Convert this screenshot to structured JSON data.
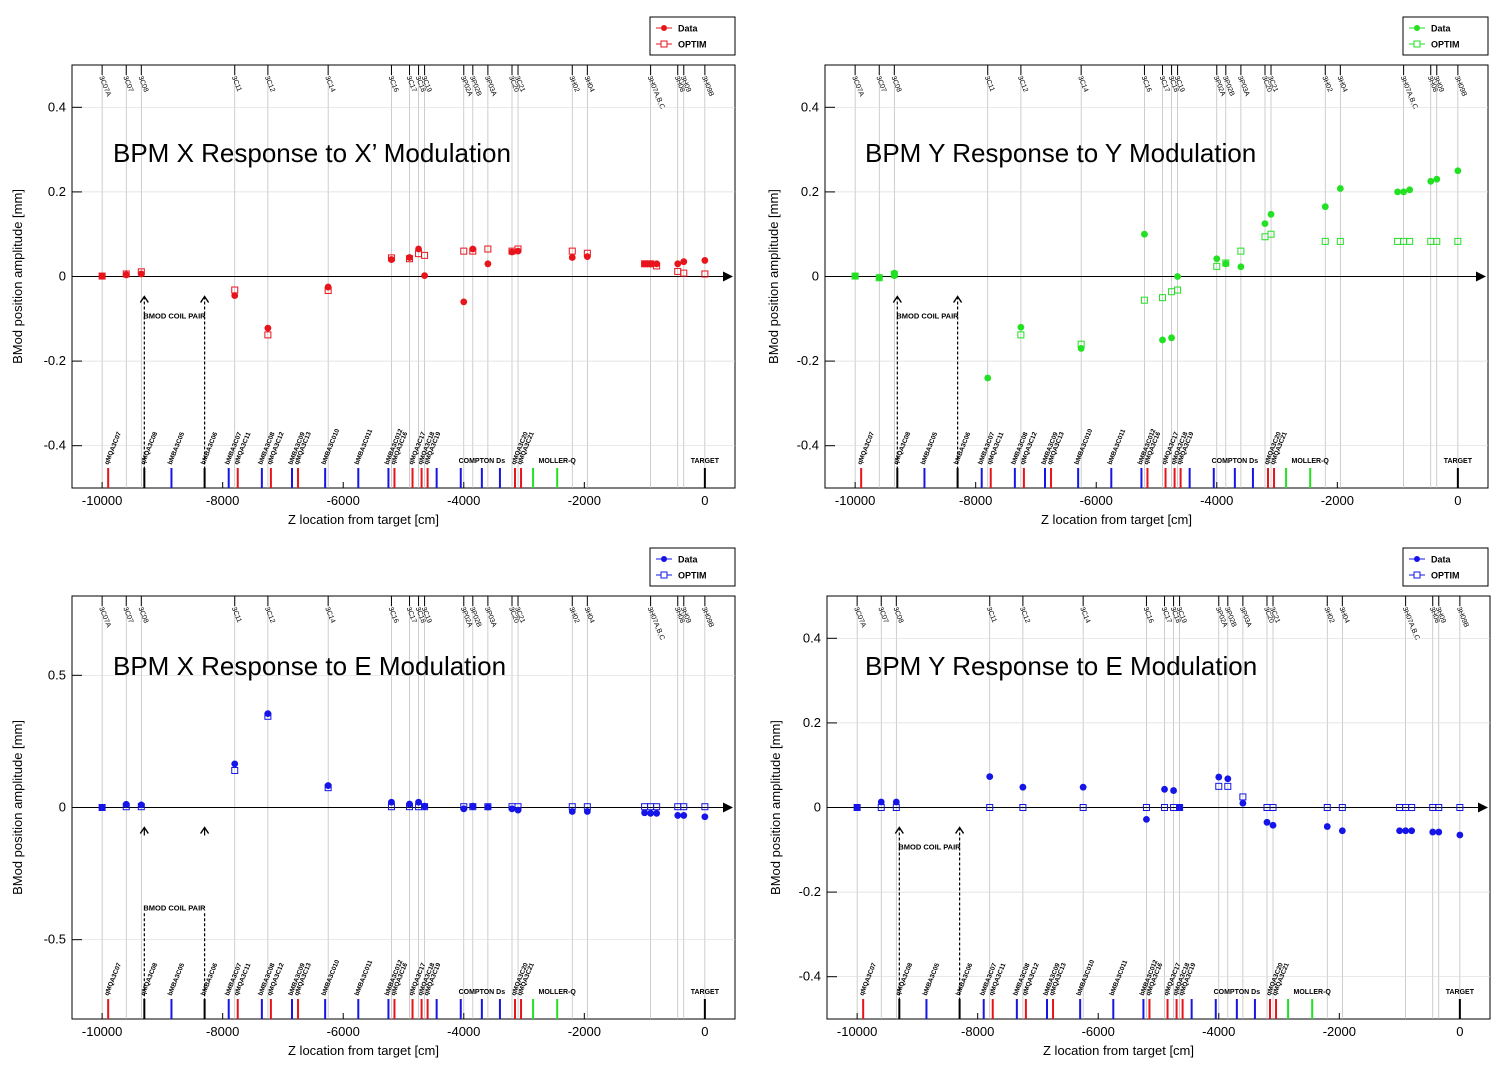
{
  "chart_data": [
    {
      "type": "scatter",
      "title": "BPM X Response to X’ Modulation",
      "xlabel": "Z location from target [cm]",
      "ylabel": "BMod position amplitude [mm]",
      "xlim": [
        -10500,
        500
      ],
      "ylim": [
        -0.5,
        0.5
      ],
      "xticks": [
        -10000,
        -8000,
        -6000,
        -4000,
        -2000,
        0
      ],
      "xtick_labels": [
        "-10000",
        "-8000",
        "-6000",
        "-4000",
        "-2000",
        "0"
      ],
      "yticks": [
        -0.4,
        -0.2,
        0,
        0.2,
        0.4
      ],
      "ytick_labels": [
        "-0.4",
        "-0.2",
        "0",
        "0.2",
        "0.4"
      ],
      "grid": true,
      "legend_position": "top-right",
      "color": "#e8141c",
      "series": [
        {
          "name": "Data",
          "marker": "filled-circle",
          "x": [
            -10000,
            -9600,
            -9350,
            -7800,
            -7250,
            -6250,
            -5200,
            -4900,
            -4750,
            -4650,
            -4000,
            -3850,
            -3600,
            -3200,
            -3100,
            -2200,
            -1950,
            -1000,
            -900,
            -800,
            -450,
            -350,
            0
          ],
          "y": [
            0.001,
            0.004,
            0.006,
            -0.045,
            -0.122,
            -0.025,
            0.04,
            0.045,
            0.065,
            0.002,
            -0.06,
            0.065,
            0.03,
            0.058,
            0.06,
            0.045,
            0.047,
            0.03,
            0.03,
            0.03,
            0.03,
            0.035,
            0.038
          ]
        },
        {
          "name": "OPTIM",
          "marker": "open-square",
          "x": [
            -10000,
            -9600,
            -9350,
            -7800,
            -7250,
            -6250,
            -5200,
            -4900,
            -4750,
            -4650,
            -4000,
            -3850,
            -3600,
            -3200,
            -3100,
            -2200,
            -1950,
            -1000,
            -900,
            -800,
            -450,
            -350,
            0
          ],
          "y": [
            0.001,
            0.006,
            0.011,
            -0.032,
            -0.138,
            -0.033,
            0.044,
            0.042,
            0.054,
            0.05,
            0.06,
            0.06,
            0.065,
            0.06,
            0.065,
            0.06,
            0.055,
            0.03,
            0.03,
            0.025,
            0.012,
            0.008,
            0.006
          ]
        }
      ],
      "coil_label": "BMOD COIL PAIR"
    },
    {
      "type": "scatter",
      "title": "BPM Y Response to Y Modulation",
      "xlabel": "Z location from target [cm]",
      "ylabel": "BMod position amplitude [mm]",
      "xlim": [
        -10500,
        500
      ],
      "ylim": [
        -0.5,
        0.5
      ],
      "xticks": [
        -10000,
        -8000,
        -6000,
        -4000,
        -2000,
        0
      ],
      "xtick_labels": [
        "-10000",
        "-8000",
        "-6000",
        "-4000",
        "-2000",
        "0"
      ],
      "yticks": [
        -0.4,
        -0.2,
        0,
        0.2,
        0.4
      ],
      "ytick_labels": [
        "-0.4",
        "-0.2",
        "0",
        "0.2",
        "0.4"
      ],
      "grid": true,
      "legend_position": "top-right",
      "color": "#22e022",
      "series": [
        {
          "name": "Data",
          "marker": "filled-circle",
          "x": [
            -10000,
            -9600,
            -9350,
            -9350,
            -7800,
            -7250,
            -6250,
            -5200,
            -4900,
            -4750,
            -4650,
            -4000,
            -3850,
            -3600,
            -3200,
            -3100,
            -2200,
            -1950,
            -1000,
            -900,
            -800,
            -450,
            -350,
            0
          ],
          "y": [
            0.001,
            -0.002,
            0.002,
            0.008,
            -0.24,
            -0.12,
            -0.17,
            0.1,
            -0.15,
            -0.145,
            0.0,
            0.042,
            0.03,
            0.023,
            0.125,
            0.147,
            0.165,
            0.208,
            0.2,
            0.2,
            0.205,
            0.225,
            0.23,
            0.25
          ]
        },
        {
          "name": "OPTIM",
          "marker": "open-square",
          "x": [
            -10000,
            -9600,
            -9350,
            -7250,
            -6250,
            -5200,
            -4900,
            -4750,
            -4650,
            -4000,
            -3850,
            -3600,
            -3200,
            -3100,
            -2200,
            -1950,
            -1000,
            -900,
            -800,
            -450,
            -350,
            0
          ],
          "y": [
            0.001,
            -0.003,
            0.005,
            -0.138,
            -0.16,
            -0.056,
            -0.05,
            -0.036,
            -0.032,
            0.024,
            0.032,
            0.06,
            0.094,
            0.1,
            0.083,
            0.083,
            0.083,
            0.083,
            0.083,
            0.083,
            0.083,
            0.083
          ]
        }
      ],
      "coil_label": "BMOD COIL PAIR"
    },
    {
      "type": "scatter",
      "title": "BPM X Response to E Modulation",
      "xlabel": "Z location from target [cm]",
      "ylabel": "BMod position amplitude [mm]",
      "xlim": [
        -10500,
        500
      ],
      "ylim": [
        -0.8,
        0.8
      ],
      "xticks": [
        -10000,
        -8000,
        -6000,
        -4000,
        -2000,
        0
      ],
      "xtick_labels": [
        "-10000",
        "-8000",
        "-6000",
        "-4000",
        "-2000",
        "0"
      ],
      "yticks": [
        -0.5,
        0,
        0.5
      ],
      "ytick_labels": [
        "-0.5",
        "0",
        "0.5"
      ],
      "grid": true,
      "legend_position": "top-right",
      "color": "#1515e8",
      "series": [
        {
          "name": "Data",
          "marker": "filled-circle",
          "x": [
            -10000,
            -9600,
            -9350,
            -7800,
            -7250,
            -6250,
            -5200,
            -4900,
            -4750,
            -4650,
            -4000,
            -3850,
            -3600,
            -3200,
            -3100,
            -2200,
            -1950,
            -1000,
            -900,
            -800,
            -450,
            -350,
            0
          ],
          "y": [
            0.0,
            0.012,
            0.01,
            0.165,
            0.355,
            0.083,
            0.02,
            0.013,
            0.02,
            0.005,
            -0.005,
            0.005,
            0.002,
            -0.005,
            -0.01,
            -0.015,
            -0.015,
            -0.02,
            -0.022,
            -0.022,
            -0.03,
            -0.03,
            -0.035
          ]
        },
        {
          "name": "OPTIM",
          "marker": "open-square",
          "x": [
            -10000,
            -9600,
            -9350,
            -7800,
            -7250,
            -6250,
            -5200,
            -4900,
            -4750,
            -4650,
            -4000,
            -3850,
            -3600,
            -3200,
            -3100,
            -2200,
            -1950,
            -1000,
            -900,
            -800,
            -450,
            -350,
            0
          ],
          "y": [
            0.0,
            0.003,
            0.003,
            0.14,
            0.345,
            0.075,
            0.003,
            0.003,
            0.003,
            0.003,
            0.003,
            0.003,
            0.003,
            0.003,
            0.003,
            0.003,
            0.003,
            0.003,
            0.003,
            0.003,
            0.003,
            0.003,
            0.003
          ]
        }
      ],
      "coil_label": "BMOD COIL PAIR"
    },
    {
      "type": "scatter",
      "title": "BPM Y Response to E Modulation",
      "xlabel": "Z location from target [cm]",
      "ylabel": "BMod position amplitude [mm]",
      "xlim": [
        -10500,
        500
      ],
      "ylim": [
        -0.5,
        0.5
      ],
      "xticks": [
        -10000,
        -8000,
        -6000,
        -4000,
        -2000,
        0
      ],
      "xtick_labels": [
        "-10000",
        "-8000",
        "-6000",
        "-4000",
        "-2000",
        "0"
      ],
      "yticks": [
        -0.4,
        -0.2,
        0,
        0.2,
        0.4
      ],
      "ytick_labels": [
        "-0.4",
        "-0.2",
        "0",
        "0.2",
        "0.4"
      ],
      "grid": true,
      "legend_position": "top-right",
      "color": "#1515e8",
      "series": [
        {
          "name": "Data",
          "marker": "filled-circle",
          "x": [
            -10000,
            -9600,
            -9350,
            -7800,
            -7250,
            -6250,
            -5200,
            -4900,
            -4750,
            -4650,
            -4000,
            -3850,
            -3600,
            -3200,
            -3100,
            -2200,
            -1950,
            -1000,
            -900,
            -800,
            -450,
            -350,
            0
          ],
          "y": [
            0.0,
            0.013,
            0.013,
            0.073,
            0.048,
            0.048,
            -0.028,
            0.043,
            0.04,
            0.0,
            0.072,
            0.068,
            0.01,
            -0.035,
            -0.042,
            -0.045,
            -0.055,
            -0.055,
            -0.055,
            -0.055,
            -0.058,
            -0.058,
            -0.065
          ]
        },
        {
          "name": "OPTIM",
          "marker": "open-square",
          "x": [
            -10000,
            -9600,
            -9350,
            -7800,
            -7250,
            -6250,
            -5200,
            -4900,
            -4750,
            -4650,
            -4000,
            -3850,
            -3600,
            -3200,
            -3100,
            -2200,
            -1950,
            -1000,
            -900,
            -800,
            -450,
            -350,
            0
          ],
          "y": [
            0.0,
            0.0,
            0.0,
            0.0,
            0.0,
            0.0,
            0.0,
            0.0,
            0.0,
            0.0,
            0.05,
            0.05,
            0.025,
            0.0,
            0.0,
            0.0,
            0.0,
            0.0,
            0.0,
            0.0,
            0.0,
            0.0,
            0.0
          ]
        }
      ],
      "coil_label": "BMOD COIL PAIR"
    }
  ],
  "bpm_markers": [
    {
      "label": "3C07A",
      "z": -10000
    },
    {
      "label": "3C07",
      "z": -9600
    },
    {
      "label": "3C08",
      "z": -9350
    },
    {
      "label": "3C11",
      "z": -7800
    },
    {
      "label": "3C12",
      "z": -7250
    },
    {
      "label": "3C14",
      "z": -6250
    },
    {
      "label": "3C16",
      "z": -5200
    },
    {
      "label": "3C17",
      "z": -4900
    },
    {
      "label": "3C18",
      "z": -4750
    },
    {
      "label": "3C19",
      "z": -4650
    },
    {
      "label": "3P02A",
      "z": -4000
    },
    {
      "label": "3P02B",
      "z": -3850
    },
    {
      "label": "3P03A",
      "z": -3600
    },
    {
      "label": "3C20",
      "z": -3200
    },
    {
      "label": "3C21",
      "z": -3100
    },
    {
      "label": "3H02",
      "z": -2200
    },
    {
      "label": "3H04",
      "z": -1950
    },
    {
      "label": "3H07A,B,C",
      "z": -900
    },
    {
      "label": "3H08",
      "z": -450
    },
    {
      "label": "3H09",
      "z": -350
    },
    {
      "label": "3H09B",
      "z": 0
    }
  ],
  "magnet_markers": [
    {
      "label": "qMQA3C07",
      "z": -9900,
      "color": "#e8141c"
    },
    {
      "label": "qMQA3C08",
      "z": -9300,
      "color": "#000000"
    },
    {
      "label": "bMBA3C05",
      "z": -8850,
      "color": "#1515e8"
    },
    {
      "label": "bMBA3C06",
      "z": -8300,
      "color": "#000000"
    },
    {
      "label": "bMBA3C07",
      "z": -7900,
      "color": "#1515e8"
    },
    {
      "label": "qMQA3C11",
      "z": -7750,
      "color": "#e8141c"
    },
    {
      "label": "bMBA3C08",
      "z": -7350,
      "color": "#1515e8"
    },
    {
      "label": "qMQA3C12",
      "z": -7200,
      "color": "#e8141c"
    },
    {
      "label": "bMBA3C09",
      "z": -6850,
      "color": "#1515e8"
    },
    {
      "label": "qMQA3C13",
      "z": -6750,
      "color": "#e8141c"
    },
    {
      "label": "bMBA3C010",
      "z": -6300,
      "color": "#1515e8"
    },
    {
      "label": "bMBA3C011",
      "z": -5750,
      "color": "#1515e8"
    },
    {
      "label": "bMBA3C012",
      "z": -5250,
      "color": "#1515e8"
    },
    {
      "label": "qMQA3C16",
      "z": -5150,
      "color": "#e8141c"
    },
    {
      "label": "qMQA3C17",
      "z": -4850,
      "color": "#e8141c"
    },
    {
      "label": "qMQA3C18",
      "z": -4700,
      "color": "#e8141c"
    },
    {
      "label": "qMQA3C19",
      "z": -4600,
      "color": "#e8141c"
    },
    {
      "label": "",
      "z": -4450,
      "color": "#1515e8"
    },
    {
      "label": "",
      "z": -4050,
      "color": "#1515e8"
    },
    {
      "label": "",
      "z": -3700,
      "color": "#1515e8"
    },
    {
      "label": "",
      "z": -3400,
      "color": "#1515e8"
    },
    {
      "label": "qMQA3C20",
      "z": -3150,
      "color": "#e8141c"
    },
    {
      "label": "qMQA3C21",
      "z": -3050,
      "color": "#e8141c"
    },
    {
      "label": "",
      "z": -2850,
      "color": "#22e022"
    },
    {
      "label": "",
      "z": -2450,
      "color": "#22e022"
    },
    {
      "label": "",
      "z": 0,
      "color": "#000000"
    }
  ],
  "region_labels": [
    {
      "text": "COMPTON Ds",
      "z": -3700
    },
    {
      "text": "MOLLER-Q",
      "z": -2450
    },
    {
      "text": "TARGET",
      "z": 0
    }
  ]
}
